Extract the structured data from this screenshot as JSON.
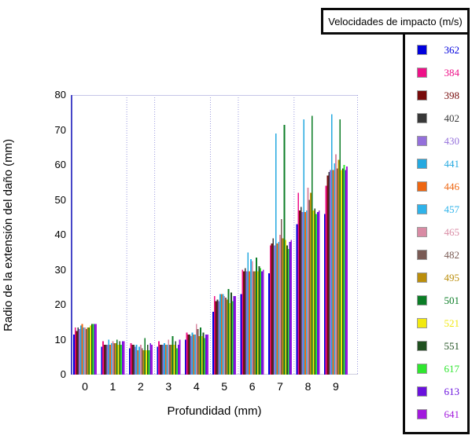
{
  "legend": {
    "title": "Velocidades de impacto (m/s)"
  },
  "chart_data": {
    "type": "bar",
    "title": "",
    "xlabel": "Profundidad (mm)",
    "ylabel": "Radio de la extensión del daño (mm)",
    "ylim": [
      0,
      80
    ],
    "y_ticks": [
      0,
      10,
      20,
      30,
      40,
      50,
      60,
      70,
      80
    ],
    "grid": "vertical-dotted-separators",
    "separators_after_category": [
      1,
      2,
      4,
      5,
      7
    ],
    "legend_position": "right",
    "legend_title": "Velocidades de impacto (m/s)",
    "axis_color": "#4646c8",
    "grid_color": "#9a9ade",
    "categories": [
      "0",
      "1",
      "2",
      "3",
      "4",
      "5",
      "6",
      "7",
      "8",
      "9"
    ],
    "series": [
      {
        "name": "362",
        "color": "#0000dd",
        "values": [
          11.5,
          8,
          7.5,
          8,
          10,
          18,
          23,
          29,
          43,
          46
        ]
      },
      {
        "name": "384",
        "color": "#ee1188",
        "values": [
          13.5,
          9.5,
          9,
          9.5,
          12,
          22.5,
          30,
          37,
          52,
          54
        ]
      },
      {
        "name": "398",
        "color": "#770b0b",
        "values": [
          12.5,
          8.5,
          8.5,
          8.5,
          11.5,
          21,
          29.5,
          37.5,
          47,
          57
        ]
      },
      {
        "name": "402",
        "color": "#383838",
        "values": [
          13.5,
          8.5,
          8.5,
          8.5,
          11.5,
          21.5,
          30.5,
          39,
          48,
          58
        ]
      },
      {
        "name": "430",
        "color": "#9470db",
        "values": [
          13,
          8.5,
          8,
          8.5,
          11,
          21,
          29.5,
          37,
          46.5,
          58.5
        ]
      },
      {
        "name": "441",
        "color": "#25a9e0",
        "values": [
          14,
          10,
          8.5,
          9,
          12,
          23,
          35,
          69,
          73,
          74.5
        ]
      },
      {
        "name": "446",
        "color": "#ee6611",
        "values": [
          14.5,
          8.5,
          7,
          8.5,
          11.5,
          23,
          29.5,
          37.5,
          46.5,
          58.5
        ]
      },
      {
        "name": "457",
        "color": "#2fb3ea",
        "values": [
          13.5,
          9,
          8,
          8.5,
          11.5,
          23,
          33,
          38,
          47,
          60.5
        ]
      },
      {
        "name": "465",
        "color": "#d98ba4",
        "values": [
          13.5,
          9.5,
          8.5,
          10,
          14.5,
          22.5,
          32.5,
          40,
          53.5,
          63
        ]
      },
      {
        "name": "482",
        "color": "#7a5b55",
        "values": [
          13,
          9,
          7.5,
          8.5,
          13,
          22,
          29.5,
          44.5,
          50,
          59
        ]
      },
      {
        "name": "495",
        "color": "#bb8e0b",
        "values": [
          13.5,
          9,
          7,
          8.5,
          11,
          21.5,
          29.5,
          39,
          52,
          61.5
        ]
      },
      {
        "name": "501",
        "color": "#0b7d26",
        "values": [
          13.5,
          10,
          10.5,
          11,
          13.5,
          24.5,
          33.5,
          71.5,
          74,
          73
        ]
      },
      {
        "name": "521",
        "color": "#f2e90f",
        "values": [
          14,
          8.5,
          7,
          8.5,
          11,
          20.5,
          29.5,
          38.5,
          47,
          58.5
        ]
      },
      {
        "name": "551",
        "color": "#205020",
        "values": [
          14.5,
          9.5,
          8.5,
          9.5,
          12,
          23.5,
          31,
          37,
          47.5,
          59
        ]
      },
      {
        "name": "617",
        "color": "#2fe62f",
        "values": [
          14.5,
          8.5,
          7,
          7.5,
          10.5,
          21,
          30.5,
          36,
          46,
          60
        ]
      },
      {
        "name": "613",
        "color": "#6a11dd",
        "values": [
          14.5,
          9.5,
          9,
          8.5,
          11.5,
          22.5,
          29.5,
          38,
          46.5,
          58.5
        ]
      },
      {
        "name": "641",
        "color": "#a219dd",
        "values": [
          14.5,
          9.5,
          8.5,
          10,
          11.5,
          22.5,
          30,
          38.5,
          47,
          59.5
        ]
      }
    ]
  }
}
